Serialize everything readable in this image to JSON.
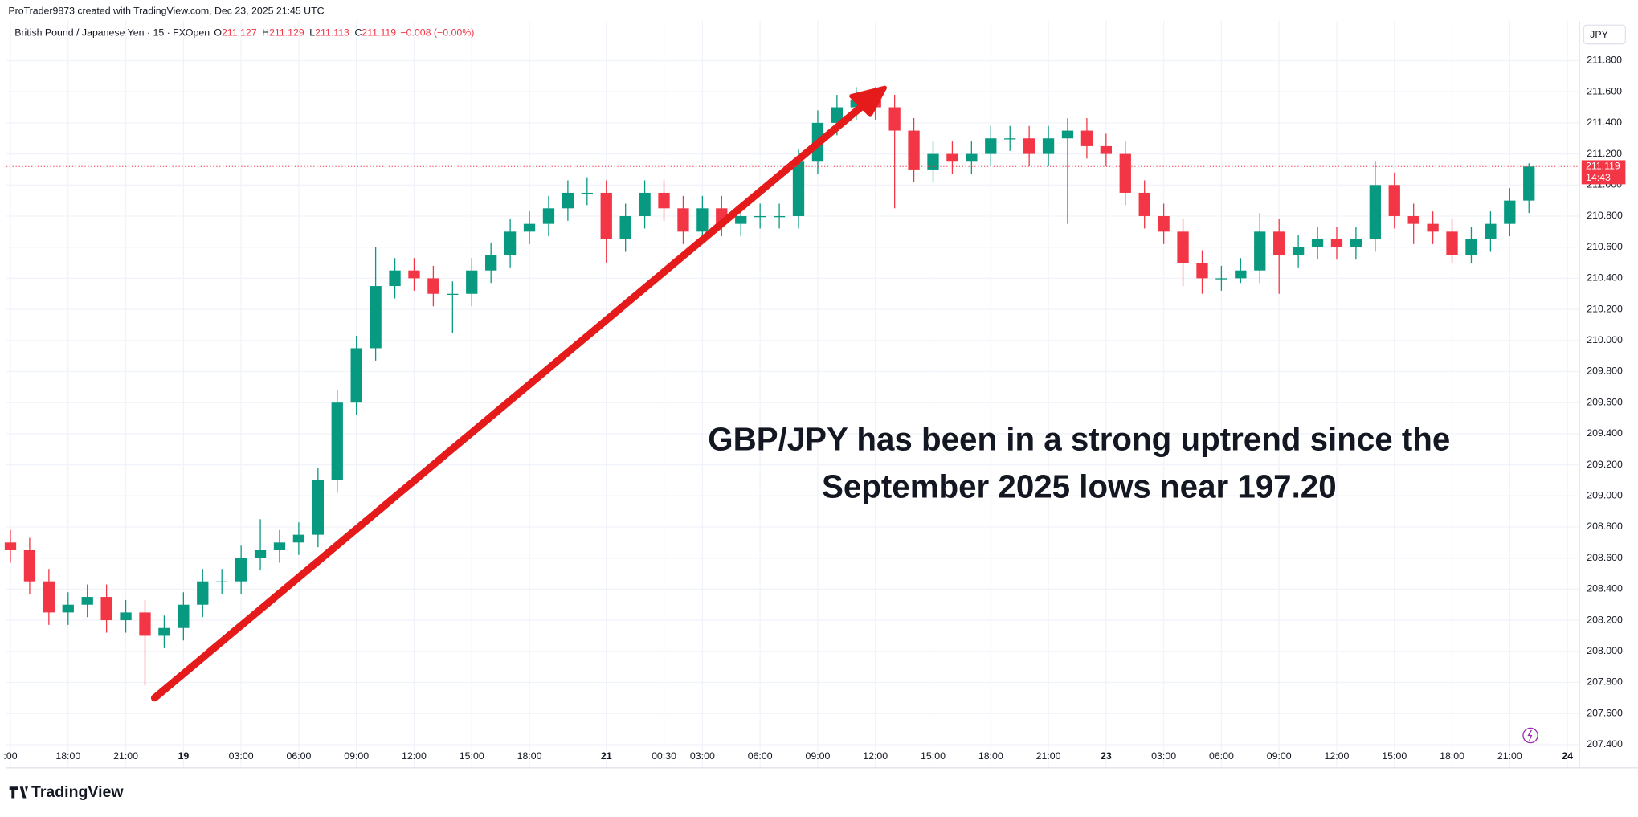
{
  "header": {
    "credit": "ProTrader9873 created with TradingView.com, Dec 23, 2025 21:45 UTC"
  },
  "chart_data": {
    "type": "candlestick",
    "symbol": "British Pound / Japanese Yen · 15 · FXOpen",
    "ohlc_labels": [
      "O",
      "H",
      "L",
      "C"
    ],
    "ohlc_values": [
      211.127,
      211.129,
      211.113,
      211.119
    ],
    "change": "−0.008 (−0.00%)",
    "currency": "JPY",
    "last_price": 211.119,
    "countdown": "14:43",
    "annotation": [
      "GBP/JPY has been in a strong uptrend since the",
      "September 2025 lows near 197.20"
    ],
    "up_color": "#089981",
    "down_color": "#f23645",
    "grid": true,
    "categories": [
      ":00",
      null,
      null,
      "18:00",
      null,
      null,
      "21:00",
      null,
      null,
      "19",
      null,
      null,
      "03:00",
      null,
      null,
      "06:00",
      null,
      null,
      "09:00",
      null,
      null,
      "12:00",
      null,
      null,
      "15:00",
      null,
      null,
      "18:00",
      null,
      null,
      null,
      "21",
      null,
      null,
      "00:30",
      null,
      "03:00",
      null,
      null,
      "06:00",
      null,
      null,
      "09:00",
      null,
      null,
      "12:00",
      null,
      null,
      "15:00",
      null,
      null,
      "18:00",
      null,
      null,
      "21:00",
      null,
      null,
      "23",
      null,
      null,
      "03:00",
      null,
      null,
      "06:00",
      null,
      null,
      "09:00",
      null,
      null,
      "12:00",
      null,
      null,
      "15:00",
      null,
      null,
      "18:00",
      null,
      null,
      "21:00",
      null,
      null,
      "24"
    ],
    "open": [
      208.7,
      208.65,
      208.45,
      208.25,
      208.3,
      208.35,
      208.2,
      208.25,
      208.1,
      208.15,
      208.3,
      208.45,
      208.45,
      208.6,
      208.65,
      208.7,
      208.75,
      209.1,
      209.6,
      209.95,
      210.35,
      210.45,
      210.4,
      210.3,
      210.3,
      210.45,
      210.55,
      210.7,
      210.75,
      210.85,
      210.95,
      210.95,
      210.65,
      210.8,
      210.95,
      210.85,
      210.7,
      210.85,
      210.75,
      210.8,
      210.8,
      210.8,
      211.15,
      211.4,
      211.5,
      211.55,
      211.5,
      211.35,
      211.1,
      211.2,
      211.15,
      211.2,
      211.3,
      211.3,
      211.2,
      211.3,
      211.35,
      211.25,
      211.2,
      210.95,
      210.8,
      210.7,
      210.5,
      210.4,
      210.4,
      210.45,
      210.7,
      210.55,
      210.6,
      210.65,
      210.6,
      210.65,
      211.0,
      210.8,
      210.75,
      210.7,
      210.55,
      210.65,
      210.75,
      210.9,
      null,
      null
    ],
    "high": [
      208.78,
      208.73,
      208.53,
      208.38,
      208.43,
      208.43,
      208.33,
      208.33,
      208.23,
      208.38,
      208.53,
      208.53,
      208.68,
      208.85,
      208.78,
      208.83,
      209.18,
      209.68,
      210.03,
      210.6,
      210.53,
      210.53,
      210.48,
      210.38,
      210.53,
      210.63,
      210.78,
      210.83,
      210.93,
      211.03,
      211.05,
      211.03,
      210.88,
      211.03,
      211.03,
      210.93,
      210.93,
      210.93,
      210.88,
      210.88,
      210.88,
      211.23,
      211.48,
      211.58,
      211.63,
      211.63,
      211.58,
      211.43,
      211.28,
      211.28,
      211.28,
      211.38,
      211.38,
      211.38,
      211.38,
      211.43,
      211.43,
      211.33,
      211.28,
      211.03,
      210.88,
      210.78,
      210.58,
      210.48,
      210.53,
      210.82,
      210.78,
      210.68,
      210.73,
      210.73,
      210.73,
      211.15,
      211.08,
      210.88,
      210.83,
      210.78,
      210.73,
      210.83,
      210.98,
      211.14,
      null,
      null
    ],
    "low": [
      208.57,
      208.37,
      208.17,
      208.17,
      208.22,
      208.12,
      208.12,
      207.78,
      208.02,
      208.07,
      208.22,
      208.37,
      208.37,
      208.52,
      208.57,
      208.62,
      208.67,
      209.02,
      209.52,
      209.87,
      210.27,
      210.32,
      210.22,
      210.05,
      210.22,
      210.37,
      210.47,
      210.62,
      210.67,
      210.77,
      210.87,
      210.5,
      210.57,
      210.72,
      210.77,
      210.62,
      210.62,
      210.67,
      210.67,
      210.72,
      210.72,
      210.72,
      211.07,
      211.32,
      211.42,
      211.42,
      210.85,
      211.02,
      211.02,
      211.07,
      211.07,
      211.12,
      211.22,
      211.12,
      211.12,
      210.75,
      211.17,
      211.12,
      210.87,
      210.72,
      210.62,
      210.35,
      210.3,
      210.32,
      210.37,
      210.37,
      210.3,
      210.47,
      210.52,
      210.52,
      210.52,
      210.57,
      210.72,
      210.62,
      210.62,
      210.5,
      210.5,
      210.57,
      210.67,
      210.82,
      null,
      null
    ],
    "close": [
      208.65,
      208.45,
      208.25,
      208.3,
      208.35,
      208.2,
      208.25,
      208.1,
      208.15,
      208.3,
      208.45,
      208.45,
      208.6,
      208.65,
      208.7,
      208.75,
      209.1,
      209.6,
      209.95,
      210.35,
      210.45,
      210.4,
      210.3,
      210.3,
      210.45,
      210.55,
      210.7,
      210.75,
      210.85,
      210.95,
      210.95,
      210.65,
      210.8,
      210.95,
      210.85,
      210.7,
      210.85,
      210.75,
      210.8,
      210.8,
      210.8,
      211.15,
      211.4,
      211.5,
      211.55,
      211.5,
      211.35,
      211.1,
      211.2,
      211.15,
      211.2,
      211.3,
      211.3,
      211.2,
      211.3,
      211.35,
      211.25,
      211.2,
      210.95,
      210.8,
      210.7,
      210.5,
      210.4,
      210.4,
      210.45,
      210.7,
      210.55,
      210.6,
      210.65,
      210.6,
      210.65,
      211.0,
      210.8,
      210.75,
      210.7,
      210.55,
      210.65,
      210.75,
      210.9,
      211.119,
      null,
      null
    ],
    "ylim": [
      207.378,
      212.042
    ],
    "yticks": [
      {
        "value": 207.4,
        "label": "207.400"
      },
      {
        "value": 207.6,
        "label": "207.600"
      },
      {
        "value": 207.8,
        "label": "207.800"
      },
      {
        "value": 208.0,
        "label": "208.000"
      },
      {
        "value": 208.2,
        "label": "208.200"
      },
      {
        "value": 208.4,
        "label": "208.400"
      },
      {
        "value": 208.6,
        "label": "208.600"
      },
      {
        "value": 208.8,
        "label": "208.800"
      },
      {
        "value": 209.0,
        "label": "209.000"
      },
      {
        "value": 209.2,
        "label": "209.200"
      },
      {
        "value": 209.4,
        "label": "209.400"
      },
      {
        "value": 209.6,
        "label": "209.600"
      },
      {
        "value": 209.8,
        "label": "209.800"
      },
      {
        "value": 210.0,
        "label": "210.000"
      },
      {
        "value": 210.2,
        "label": "210.200"
      },
      {
        "value": 210.4,
        "label": "210.400"
      },
      {
        "value": 210.6,
        "label": "210.600"
      },
      {
        "value": 210.8,
        "label": "210.800"
      },
      {
        "value": 211.0,
        "label": "211.000"
      },
      {
        "value": 211.2,
        "label": "211.200"
      },
      {
        "value": 211.4,
        "label": "211.400"
      },
      {
        "value": 211.6,
        "label": "211.600"
      },
      {
        "value": 211.8,
        "label": "211.800"
      }
    ]
  },
  "footer": {
    "brand": "TradingView"
  }
}
